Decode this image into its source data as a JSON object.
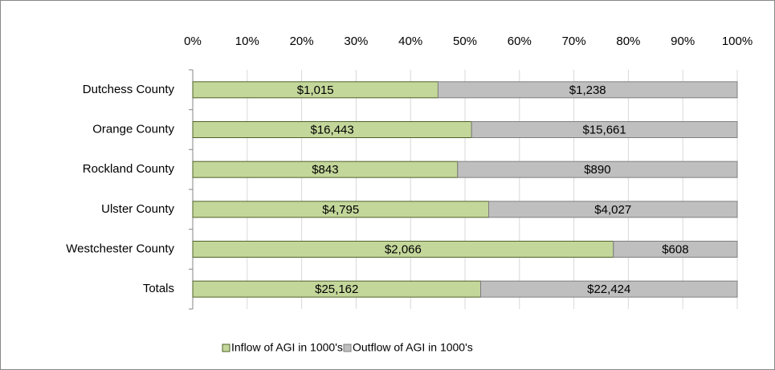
{
  "chart_data": {
    "type": "bar",
    "orientation": "horizontal",
    "stack": "percent",
    "categories": [
      "Dutchess County",
      "Orange County",
      "Rockland County",
      "Ulster County",
      "Westchester County",
      "Totals"
    ],
    "series": [
      {
        "name": "Inflow of AGI in 1000's",
        "color": "#c4d79b",
        "edge": "#4f6228",
        "values": [
          1015,
          16443,
          843,
          4795,
          2066,
          25162
        ],
        "value_labels": [
          "$1,015",
          "$16,443",
          "$843",
          "$4,795",
          "$2,066",
          "$25,162"
        ]
      },
      {
        "name": "Outflow of AGI in 1000's",
        "color": "#bfbfbf",
        "edge": "#7f7f7f",
        "values": [
          1238,
          15661,
          890,
          4027,
          608,
          22424
        ],
        "value_labels": [
          "$1,238",
          "$15,661",
          "$890",
          "$4,027",
          "$608",
          "$22,424"
        ]
      }
    ],
    "xlim": [
      0,
      100
    ],
    "xticks": [
      {
        "value": 0,
        "label": "0%"
      },
      {
        "value": 10,
        "label": "10%"
      },
      {
        "value": 20,
        "label": "20%"
      },
      {
        "value": 30,
        "label": "30%"
      },
      {
        "value": 40,
        "label": "40%"
      },
      {
        "value": 50,
        "label": "50%"
      },
      {
        "value": 60,
        "label": "60%"
      },
      {
        "value": 70,
        "label": "70%"
      },
      {
        "value": 80,
        "label": "80%"
      },
      {
        "value": 90,
        "label": "90%"
      },
      {
        "value": 100,
        "label": "100%"
      }
    ],
    "grid": true,
    "legend": "bottom"
  }
}
